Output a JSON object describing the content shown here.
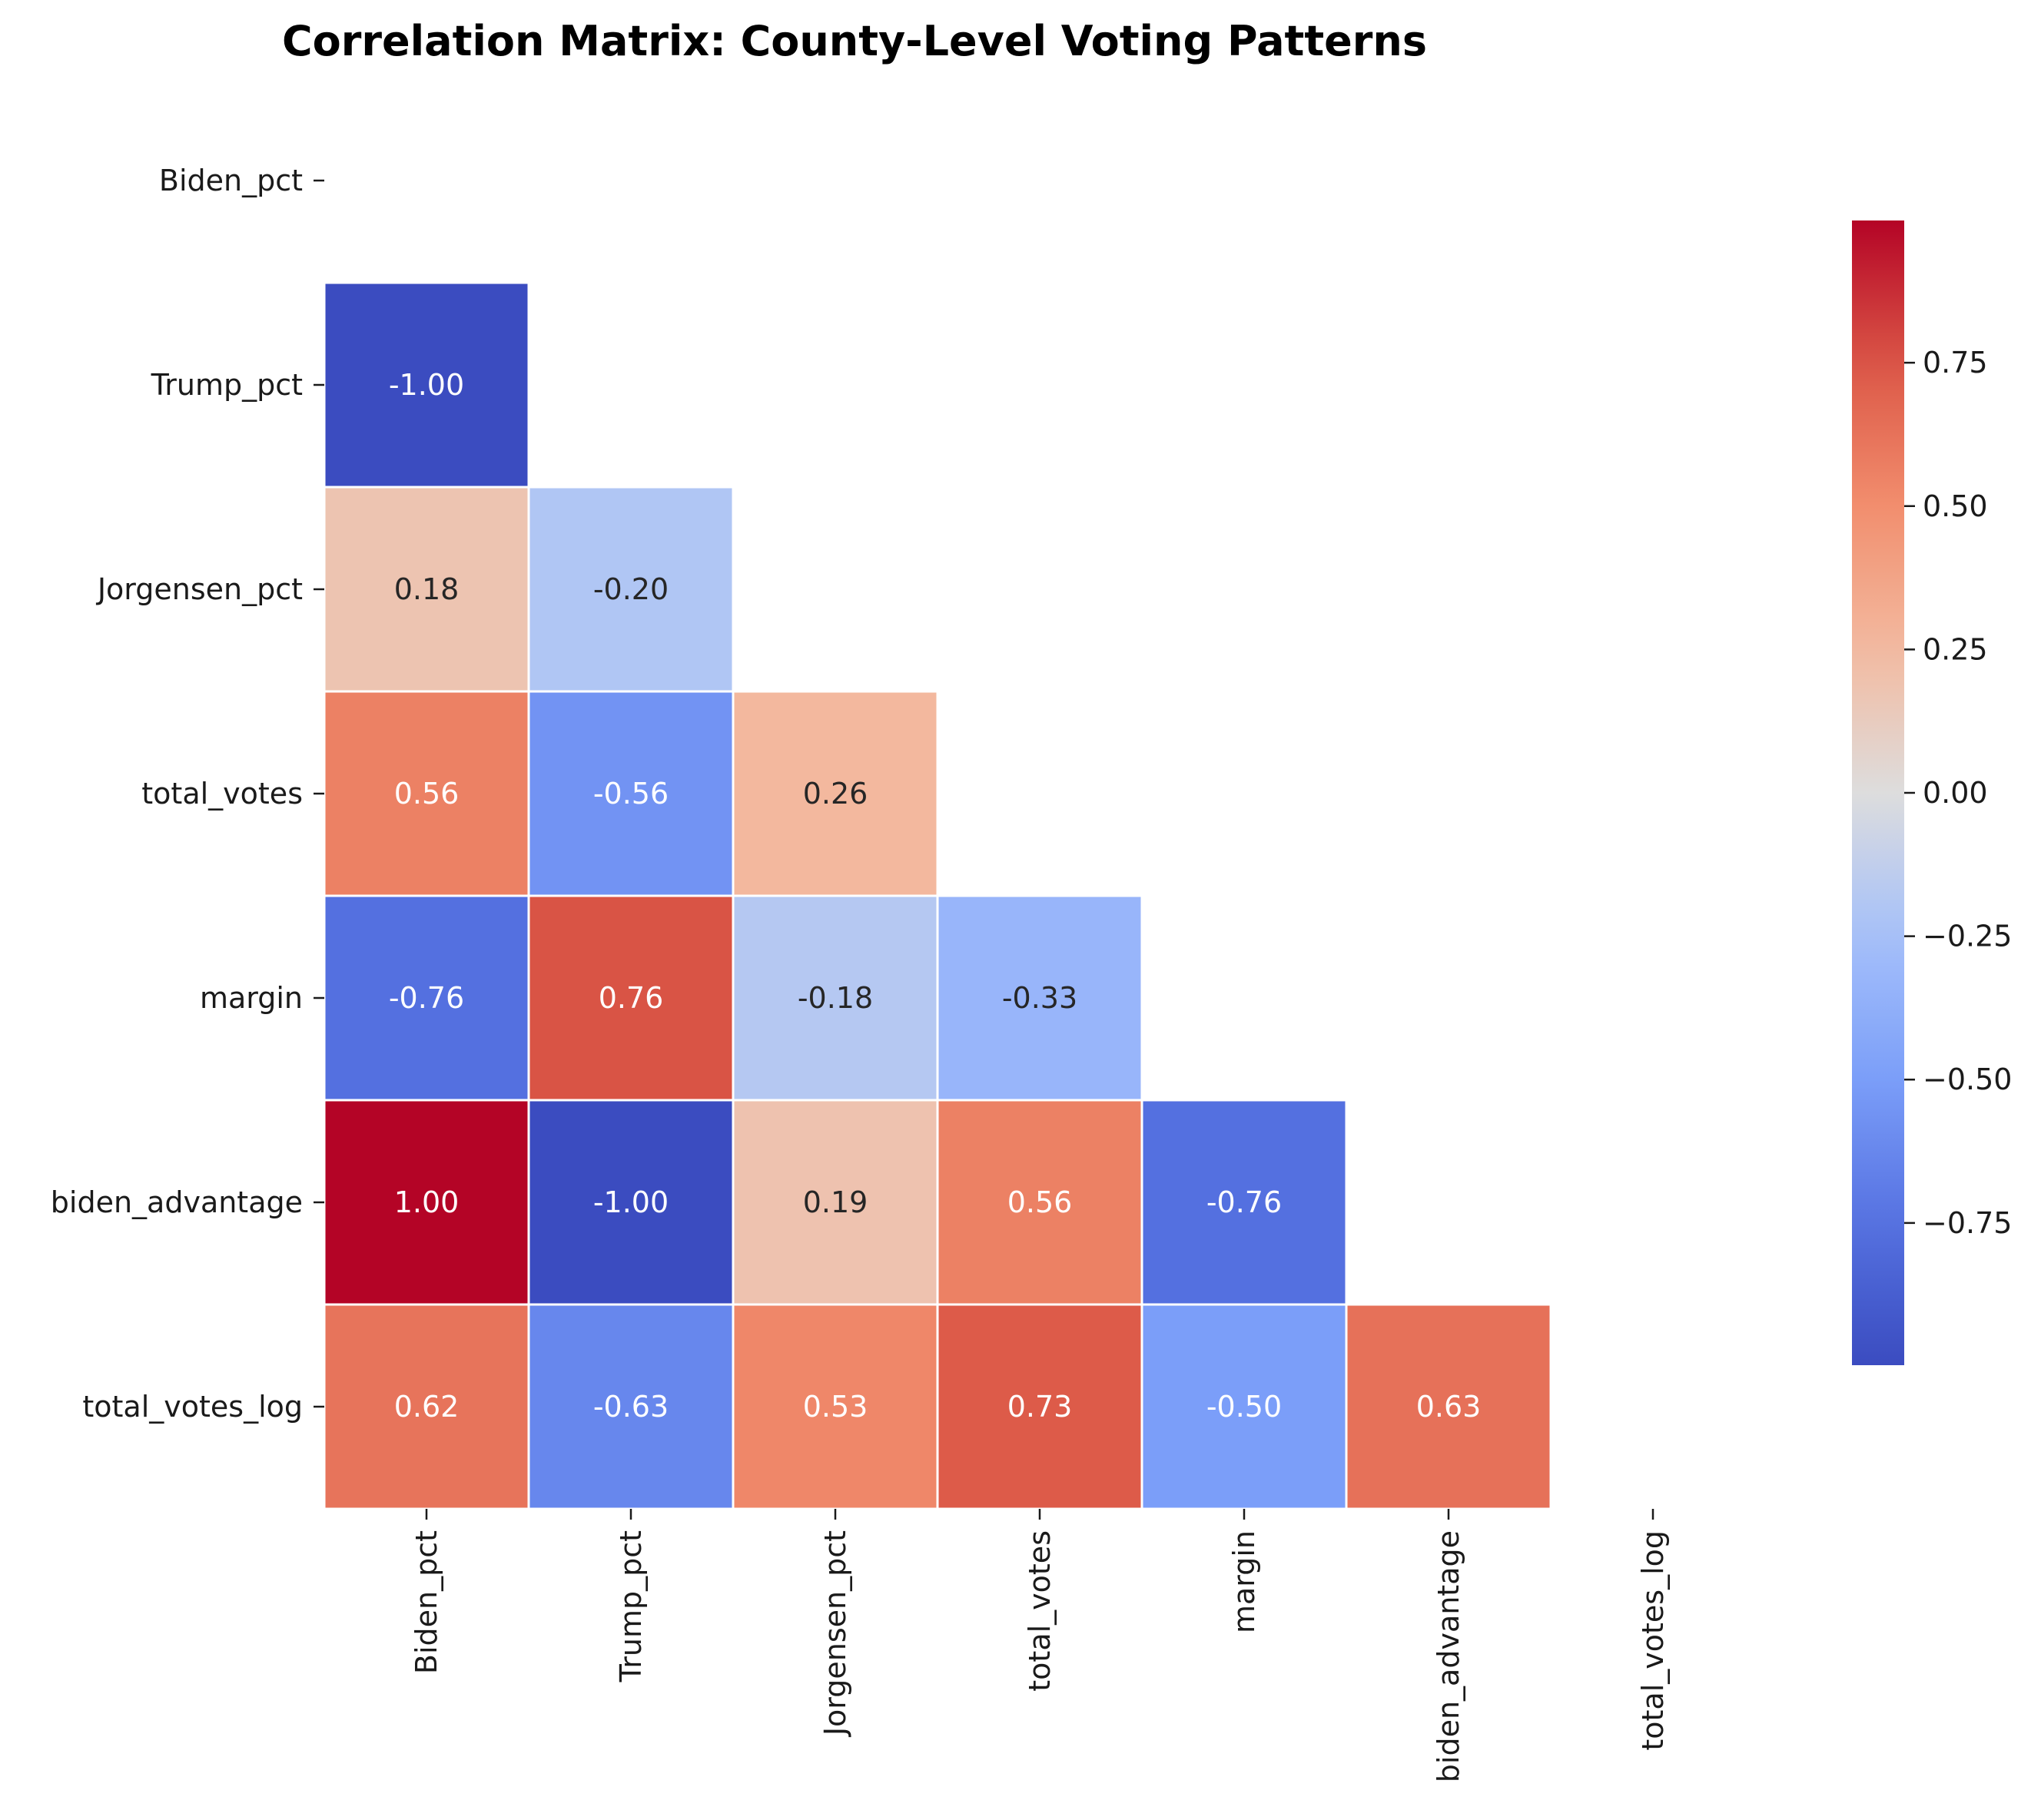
{
  "chart_data": {
    "type": "heatmap",
    "title": "Correlation Matrix: County-Level Voting Patterns",
    "variables": [
      "Biden_pct",
      "Trump_pct",
      "Jorgensen_pct",
      "total_votes",
      "margin",
      "biden_advantage",
      "total_votes_log"
    ],
    "mask": "upper-triangle-including-diagonal",
    "colormap": "coolwarm",
    "value_range": [
      -1.0,
      1.0
    ],
    "values": [
      [
        null,
        null,
        null,
        null,
        null,
        null,
        null
      ],
      [
        -1.0,
        null,
        null,
        null,
        null,
        null,
        null
      ],
      [
        0.18,
        -0.2,
        null,
        null,
        null,
        null,
        null
      ],
      [
        0.56,
        -0.56,
        0.26,
        null,
        null,
        null,
        null
      ],
      [
        -0.76,
        0.76,
        -0.18,
        -0.33,
        null,
        null,
        null
      ],
      [
        1.0,
        -1.0,
        0.19,
        0.56,
        -0.76,
        null,
        null
      ],
      [
        0.62,
        -0.63,
        0.53,
        0.73,
        -0.5,
        0.63,
        null
      ]
    ],
    "cell_labels": [
      [
        null,
        null,
        null,
        null,
        null,
        null,
        null
      ],
      [
        "-1.00",
        null,
        null,
        null,
        null,
        null,
        null
      ],
      [
        "0.18",
        "-0.20",
        null,
        null,
        null,
        null,
        null
      ],
      [
        "0.56",
        "-0.56",
        "0.26",
        null,
        null,
        null,
        null
      ],
      [
        "-0.76",
        "0.76",
        "-0.18",
        "-0.33",
        null,
        null,
        null
      ],
      [
        "1.00",
        "-1.00",
        "0.19",
        "0.56",
        "-0.76",
        null,
        null
      ],
      [
        "0.62",
        "-0.63",
        "0.53",
        "0.73",
        "-0.50",
        "0.63",
        null
      ]
    ],
    "colorbar": {
      "ticks": [
        0.75,
        0.5,
        0.25,
        0.0,
        -0.25,
        -0.5,
        -0.75
      ],
      "tick_labels": [
        "0.75",
        "0.50",
        "0.25",
        "0.00",
        "−0.25",
        "−0.50",
        "−0.75"
      ]
    }
  }
}
